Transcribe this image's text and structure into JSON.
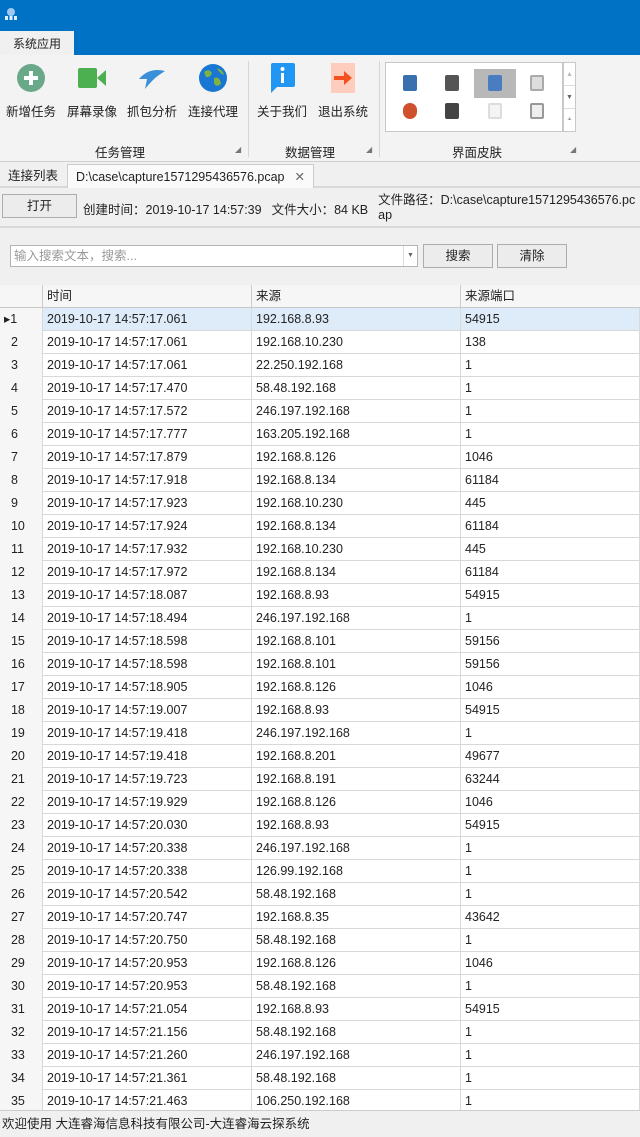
{
  "ribbon": {
    "tab": "系统应用",
    "groups": [
      {
        "label": "任务管理",
        "buttons": [
          {
            "label": "新增任务",
            "icon": "plus-circle-icon"
          },
          {
            "label": "屏幕录像",
            "icon": "video-camera-icon"
          },
          {
            "label": "抓包分析",
            "icon": "shark-icon"
          },
          {
            "label": "连接代理",
            "icon": "globe-icon"
          }
        ]
      },
      {
        "label": "数据管理",
        "buttons": [
          {
            "label": "关于我们",
            "icon": "info-icon"
          },
          {
            "label": "退出系统",
            "icon": "exit-arrow-icon"
          }
        ]
      },
      {
        "label": "界面皮肤"
      }
    ]
  },
  "doc_tabs": [
    {
      "label": "连接列表"
    },
    {
      "label": "D:\\case\\capture1571295436576.pcap",
      "active": true
    }
  ],
  "info": {
    "open_button": "打开",
    "created": "创建时间：2019-10-17 14:57:39",
    "size": "文件大小：84 KB",
    "path": "文件路径：D:\\case\\capture1571295436576.pcap"
  },
  "search": {
    "placeholder": "输入搜索文本，搜索...",
    "search_button": "搜索",
    "clear_button": "清除"
  },
  "table": {
    "columns": [
      "时间",
      "来源",
      "来源端口"
    ],
    "rows": [
      [
        "2019-10-17 14:57:17.061",
        "192.168.8.93",
        "54915"
      ],
      [
        "2019-10-17 14:57:17.061",
        "192.168.10.230",
        "138"
      ],
      [
        "2019-10-17 14:57:17.061",
        "22.250.192.168",
        "1"
      ],
      [
        "2019-10-17 14:57:17.470",
        "58.48.192.168",
        "1"
      ],
      [
        "2019-10-17 14:57:17.572",
        "246.197.192.168",
        "1"
      ],
      [
        "2019-10-17 14:57:17.777",
        "163.205.192.168",
        "1"
      ],
      [
        "2019-10-17 14:57:17.879",
        "192.168.8.126",
        "1046"
      ],
      [
        "2019-10-17 14:57:17.918",
        "192.168.8.134",
        "61184"
      ],
      [
        "2019-10-17 14:57:17.923",
        "192.168.10.230",
        "445"
      ],
      [
        "2019-10-17 14:57:17.924",
        "192.168.8.134",
        "61184"
      ],
      [
        "2019-10-17 14:57:17.932",
        "192.168.10.230",
        "445"
      ],
      [
        "2019-10-17 14:57:17.972",
        "192.168.8.134",
        "61184"
      ],
      [
        "2019-10-17 14:57:18.087",
        "192.168.8.93",
        "54915"
      ],
      [
        "2019-10-17 14:57:18.494",
        "246.197.192.168",
        "1"
      ],
      [
        "2019-10-17 14:57:18.598",
        "192.168.8.101",
        "59156"
      ],
      [
        "2019-10-17 14:57:18.598",
        "192.168.8.101",
        "59156"
      ],
      [
        "2019-10-17 14:57:18.905",
        "192.168.8.126",
        "1046"
      ],
      [
        "2019-10-17 14:57:19.007",
        "192.168.8.93",
        "54915"
      ],
      [
        "2019-10-17 14:57:19.418",
        "246.197.192.168",
        "1"
      ],
      [
        "2019-10-17 14:57:19.418",
        "192.168.8.201",
        "49677"
      ],
      [
        "2019-10-17 14:57:19.723",
        "192.168.8.191",
        "63244"
      ],
      [
        "2019-10-17 14:57:19.929",
        "192.168.8.126",
        "1046"
      ],
      [
        "2019-10-17 14:57:20.030",
        "192.168.8.93",
        "54915"
      ],
      [
        "2019-10-17 14:57:20.338",
        "246.197.192.168",
        "1"
      ],
      [
        "2019-10-17 14:57:20.338",
        "126.99.192.168",
        "1"
      ],
      [
        "2019-10-17 14:57:20.542",
        "58.48.192.168",
        "1"
      ],
      [
        "2019-10-17 14:57:20.747",
        "192.168.8.35",
        "43642"
      ],
      [
        "2019-10-17 14:57:20.750",
        "58.48.192.168",
        "1"
      ],
      [
        "2019-10-17 14:57:20.953",
        "192.168.8.126",
        "1046"
      ],
      [
        "2019-10-17 14:57:20.953",
        "58.48.192.168",
        "1"
      ],
      [
        "2019-10-17 14:57:21.054",
        "192.168.8.93",
        "54915"
      ],
      [
        "2019-10-17 14:57:21.156",
        "58.48.192.168",
        "1"
      ],
      [
        "2019-10-17 14:57:21.260",
        "246.197.192.168",
        "1"
      ],
      [
        "2019-10-17 14:57:21.361",
        "58.48.192.168",
        "1"
      ],
      [
        "2019-10-17 14:57:21.463",
        "106.250.192.168",
        "1"
      ]
    ],
    "selected_row": 1
  },
  "status": "欢迎使用 大连睿海信息科技有限公司-大连睿海云探系统",
  "colors": {
    "titlebar": "#0072c6",
    "selected_row": "#deecf9"
  }
}
